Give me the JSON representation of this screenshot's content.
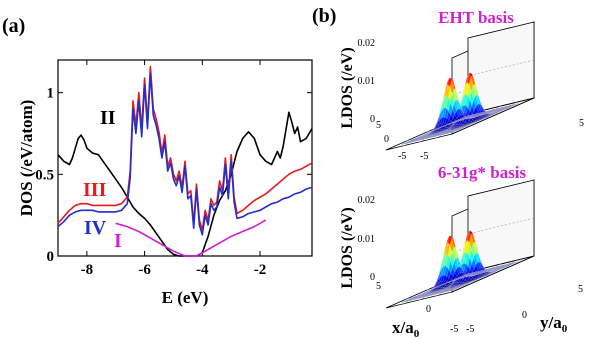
{
  "panel_a": {
    "label": "(a)",
    "chart_data": {
      "type": "line",
      "xlabel": "E (eV)",
      "ylabel": "DOS (/eV/atom)",
      "xlim": [
        -9,
        -0.2
      ],
      "ylim": [
        0,
        1.2
      ],
      "xticks": [
        -8,
        -6,
        -4,
        -2
      ],
      "yticks": [
        0,
        0.5,
        1
      ],
      "annotations": [
        {
          "text": "II",
          "color": "#000000"
        },
        {
          "text": "III",
          "color": "#e41a1c"
        },
        {
          "text": "IV",
          "color": "#1f2fd0"
        },
        {
          "text": "I",
          "color": "#d21fd2"
        }
      ],
      "series": [
        {
          "name": "II",
          "color": "#000000",
          "x": [
            -9.0,
            -8.8,
            -8.6,
            -8.5,
            -8.4,
            -8.3,
            -8.2,
            -8.1,
            -8.0,
            -7.8,
            -7.6,
            -7.4,
            -7.2,
            -7.0,
            -6.8,
            -6.6,
            -6.4,
            -6.2,
            -6.0,
            -5.8,
            -5.6,
            -5.4,
            -5.2,
            -5.0,
            -4.8,
            -4.6,
            -4.4,
            -4.2,
            -4.0,
            -3.8,
            -3.6,
            -3.4,
            -3.2,
            -3.0,
            -2.8,
            -2.6,
            -2.4,
            -2.2,
            -2.0,
            -1.8,
            -1.6,
            -1.4,
            -1.3,
            -1.2,
            -1.0,
            -0.9,
            -0.8,
            -0.7,
            -0.6,
            -0.4,
            -0.2
          ],
          "y": [
            0.62,
            0.58,
            0.56,
            0.6,
            0.66,
            0.72,
            0.74,
            0.71,
            0.66,
            0.63,
            0.62,
            0.57,
            0.52,
            0.47,
            0.42,
            0.36,
            0.3,
            0.26,
            0.23,
            0.19,
            0.14,
            0.09,
            0.04,
            0.01,
            0.0,
            0.0,
            0.0,
            0.0,
            0.02,
            0.12,
            0.25,
            0.34,
            0.4,
            0.5,
            0.64,
            0.72,
            0.76,
            0.72,
            0.62,
            0.58,
            0.56,
            0.64,
            0.6,
            0.67,
            0.88,
            0.82,
            0.75,
            0.79,
            0.7,
            0.72,
            0.78
          ]
        },
        {
          "name": "III",
          "color": "#e41a1c",
          "x": [
            -9.0,
            -8.8,
            -8.6,
            -8.4,
            -8.2,
            -8.0,
            -7.8,
            -7.6,
            -7.4,
            -7.2,
            -7.0,
            -6.8,
            -6.6,
            -6.5,
            -6.4,
            -6.3,
            -6.2,
            -6.1,
            -6.0,
            -5.9,
            -5.8,
            -5.7,
            -5.6,
            -5.5,
            -5.4,
            -5.3,
            -5.2,
            -5.1,
            -5.0,
            -4.9,
            -4.8,
            -4.7,
            -4.6,
            -4.5,
            -4.4,
            -4.3,
            -4.2,
            -4.1,
            -4.0,
            -3.9,
            -3.8,
            -3.7,
            -3.6,
            -3.5,
            -3.4,
            -3.3,
            -3.2,
            -3.1,
            -3.0,
            -2.9,
            -2.8,
            -2.6,
            -2.4,
            -2.2,
            -2.0,
            -1.8,
            -1.6,
            -1.4,
            -1.2,
            -1.0,
            -0.8,
            -0.6,
            -0.4,
            -0.2
          ],
          "y": [
            0.2,
            0.24,
            0.28,
            0.31,
            0.32,
            0.32,
            0.31,
            0.31,
            0.31,
            0.31,
            0.31,
            0.32,
            0.36,
            0.52,
            0.95,
            0.8,
            1.0,
            0.78,
            1.09,
            0.82,
            1.16,
            0.9,
            0.84,
            0.76,
            0.63,
            0.74,
            0.55,
            0.6,
            0.5,
            0.46,
            0.52,
            0.42,
            0.58,
            0.38,
            0.4,
            0.2,
            0.44,
            0.22,
            0.16,
            0.28,
            0.22,
            0.35,
            0.31,
            0.33,
            0.46,
            0.4,
            0.6,
            0.38,
            0.62,
            0.36,
            0.26,
            0.28,
            0.31,
            0.34,
            0.36,
            0.38,
            0.41,
            0.44,
            0.47,
            0.5,
            0.52,
            0.53,
            0.55,
            0.57
          ]
        },
        {
          "name": "IV",
          "color": "#1f2fd0",
          "x": [
            -9.0,
            -8.8,
            -8.6,
            -8.4,
            -8.2,
            -8.0,
            -7.8,
            -7.6,
            -7.4,
            -7.2,
            -7.0,
            -6.8,
            -6.6,
            -6.5,
            -6.4,
            -6.3,
            -6.2,
            -6.1,
            -6.0,
            -5.9,
            -5.8,
            -5.7,
            -5.6,
            -5.5,
            -5.4,
            -5.3,
            -5.2,
            -5.1,
            -5.0,
            -4.9,
            -4.8,
            -4.7,
            -4.6,
            -4.5,
            -4.4,
            -4.3,
            -4.2,
            -4.1,
            -4.0,
            -3.9,
            -3.8,
            -3.7,
            -3.6,
            -3.5,
            -3.4,
            -3.3,
            -3.2,
            -3.1,
            -3.0,
            -2.9,
            -2.8,
            -2.6,
            -2.4,
            -2.2,
            -2.0,
            -1.8,
            -1.6,
            -1.4,
            -1.2,
            -1.0,
            -0.8,
            -0.6,
            -0.4,
            -0.2
          ],
          "y": [
            0.18,
            0.21,
            0.25,
            0.27,
            0.28,
            0.28,
            0.28,
            0.27,
            0.27,
            0.27,
            0.27,
            0.28,
            0.32,
            0.48,
            0.9,
            0.75,
            0.95,
            0.73,
            1.05,
            0.78,
            1.12,
            0.86,
            0.8,
            0.72,
            0.6,
            0.7,
            0.52,
            0.57,
            0.47,
            0.43,
            0.49,
            0.39,
            0.55,
            0.35,
            0.37,
            0.17,
            0.41,
            0.19,
            0.13,
            0.25,
            0.19,
            0.32,
            0.28,
            0.3,
            0.42,
            0.37,
            0.56,
            0.35,
            0.58,
            0.33,
            0.23,
            0.24,
            0.26,
            0.27,
            0.28,
            0.3,
            0.32,
            0.33,
            0.35,
            0.36,
            0.38,
            0.39,
            0.41,
            0.42
          ]
        },
        {
          "name": "I",
          "color": "#d21fd2",
          "x": [
            -7.0,
            -6.6,
            -6.2,
            -5.8,
            -5.4,
            -5.0,
            -4.6,
            -4.2,
            -3.8,
            -3.4,
            -3.0,
            -2.6,
            -2.2,
            -1.8
          ],
          "y": [
            0.2,
            0.18,
            0.15,
            0.11,
            0.07,
            0.03,
            0.0,
            0.0,
            0.04,
            0.08,
            0.12,
            0.15,
            0.18,
            0.22
          ]
        }
      ]
    }
  },
  "panel_b": {
    "label": "(b)",
    "plots": [
      {
        "title": "EHT basis",
        "zlabel": "LDOS (/eV)",
        "zticks": [
          "0",
          "0.01",
          "0.02"
        ],
        "xticks": [
          "-5",
          "0",
          "5"
        ],
        "yticks": [
          "-5",
          "0",
          "5"
        ],
        "xlabel": "",
        "ylabel": ""
      },
      {
        "title": "6-31g* basis",
        "zlabel": "LDOS (/eV)",
        "zticks": [
          "0",
          "0.01",
          "0.02"
        ],
        "xticks": [
          "-5",
          "0",
          "5"
        ],
        "yticks": [
          "-5",
          "0",
          "5"
        ],
        "xlabel": "x/a",
        "xlabel_sub": "0",
        "ylabel": "y/a",
        "ylabel_sub": "0"
      }
    ],
    "chart_data": {
      "type": "surface",
      "xlim": [
        -5,
        5
      ],
      "ylim": [
        -5,
        5
      ],
      "zlim": [
        0,
        0.02
      ],
      "peaks": [
        {
          "x": -1.5,
          "y": 0,
          "z": 0.013
        },
        {
          "x": 1.5,
          "y": 0,
          "z": 0.013
        }
      ]
    }
  },
  "colors": {
    "title_magenta": "#d21fd2",
    "box_line": "#000000",
    "grid_gray": "#9a9a9a"
  }
}
